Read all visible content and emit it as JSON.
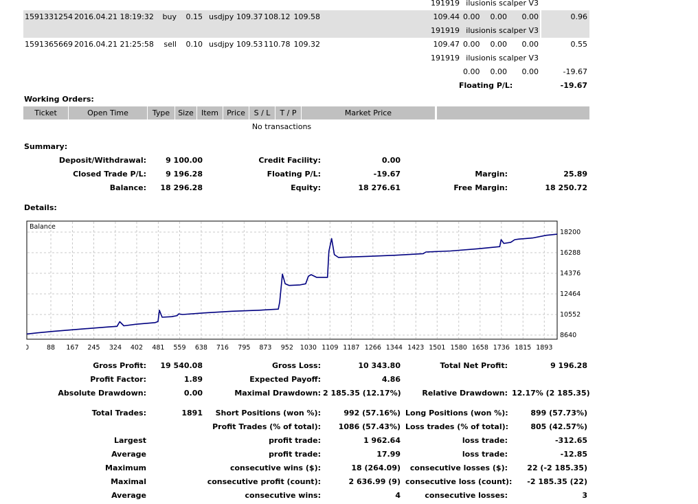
{
  "trades": [
    {
      "ticket": "",
      "time": "",
      "type": "",
      "size": "",
      "item": "",
      "price": "",
      "sl": "",
      "tp": "",
      "close": "191919",
      "comm": "",
      "tax": "",
      "swap": "",
      "comment": "ilusionis scalper V3",
      "profit": "",
      "grey": false
    },
    {
      "ticket": "1591331254",
      "time": "2016.04.21 18:19:32",
      "type": "buy",
      "size": "0.15",
      "item": "usdjpy",
      "price": "109.37",
      "sl": "108.12",
      "tp": "109.58",
      "close": "109.44",
      "comm": "0.00",
      "tax": "0.00",
      "swap": "0.00",
      "comment": "",
      "profit": "0.96",
      "grey": true
    },
    {
      "ticket": "",
      "time": "",
      "type": "",
      "size": "",
      "item": "",
      "price": "",
      "sl": "",
      "tp": "",
      "close": "191919",
      "comm": "",
      "tax": "",
      "swap": "",
      "comment": "ilusionis scalper V3",
      "profit": "",
      "grey": true
    },
    {
      "ticket": "1591365669",
      "time": "2016.04.21 21:25:58",
      "type": "sell",
      "size": "0.10",
      "item": "usdjpy",
      "price": "109.53",
      "sl": "110.78",
      "tp": "109.32",
      "close": "109.47",
      "comm": "0.00",
      "tax": "0.00",
      "swap": "0.00",
      "comment": "",
      "profit": "0.55",
      "grey": false
    },
    {
      "ticket": "",
      "time": "",
      "type": "",
      "size": "",
      "item": "",
      "price": "",
      "sl": "",
      "tp": "",
      "close": "191919",
      "comm": "",
      "tax": "",
      "swap": "",
      "comment": "ilusionis scalper V3",
      "profit": "",
      "grey": false
    },
    {
      "ticket": "",
      "time": "",
      "type": "",
      "size": "",
      "item": "",
      "price": "",
      "sl": "",
      "tp": "",
      "close": "",
      "comm": "0.00",
      "tax": "0.00",
      "swap": "0.00",
      "comment": "",
      "profit": "-19.67",
      "grey": false
    }
  ],
  "floating": {
    "label": "Floating P/L:",
    "value": "-19.67"
  },
  "working": {
    "title": "Working Orders:",
    "headers": [
      "Ticket",
      "Open Time",
      "Type",
      "Size",
      "Item",
      "Price",
      "S / L",
      "T / P",
      "Market Price"
    ],
    "empty": "No transactions"
  },
  "summary": {
    "title": "Summary:",
    "deposit_label": "Deposit/Withdrawal:",
    "deposit": "9 100.00",
    "credit_label": "Credit Facility:",
    "credit": "0.00",
    "closed_label": "Closed Trade P/L:",
    "closed": "9 196.28",
    "floating_label": "Floating P/L:",
    "floating": "-19.67",
    "margin_label": "Margin:",
    "margin": "25.89",
    "balance_label": "Balance:",
    "balance": "18 296.28",
    "equity_label": "Equity:",
    "equity": "18 276.61",
    "free_label": "Free Margin:",
    "free": "18 250.72"
  },
  "details": {
    "title": "Details:"
  },
  "chart_data": {
    "type": "line",
    "title": "Balance",
    "x_ticks": [
      "0",
      "88",
      "167",
      "245",
      "324",
      "402",
      "481",
      "559",
      "638",
      "716",
      "795",
      "873",
      "952",
      "1030",
      "1109",
      "1187",
      "1266",
      "1344",
      "1423",
      "1501",
      "1580",
      "1658",
      "1736",
      "1815",
      "1893"
    ],
    "y_ticks": [
      "18200",
      "16288",
      "14376",
      "12464",
      "10552",
      "8640"
    ],
    "xlim": [
      0,
      1940
    ],
    "ylim": [
      8640,
      18200
    ],
    "grid": true,
    "line_color": "#000080",
    "series": [
      {
        "points": [
          [
            0,
            8740
          ],
          [
            40,
            8850
          ],
          [
            100,
            9000
          ],
          [
            200,
            9200
          ],
          [
            300,
            9400
          ],
          [
            330,
            9450
          ],
          [
            340,
            9880
          ],
          [
            355,
            9500
          ],
          [
            400,
            9650
          ],
          [
            470,
            9800
          ],
          [
            480,
            9900
          ],
          [
            485,
            10950
          ],
          [
            495,
            10300
          ],
          [
            530,
            10350
          ],
          [
            550,
            10450
          ],
          [
            555,
            10600
          ],
          [
            570,
            10550
          ],
          [
            650,
            10700
          ],
          [
            750,
            10850
          ],
          [
            850,
            10950
          ],
          [
            920,
            11050
          ],
          [
            925,
            11700
          ],
          [
            935,
            14300
          ],
          [
            945,
            13400
          ],
          [
            960,
            13250
          ],
          [
            1000,
            13300
          ],
          [
            1020,
            13400
          ],
          [
            1030,
            14100
          ],
          [
            1040,
            14250
          ],
          [
            1060,
            14000
          ],
          [
            1100,
            14000
          ],
          [
            1105,
            16400
          ],
          [
            1115,
            17600
          ],
          [
            1125,
            16100
          ],
          [
            1140,
            15850
          ],
          [
            1250,
            15950
          ],
          [
            1350,
            16050
          ],
          [
            1450,
            16200
          ],
          [
            1460,
            16350
          ],
          [
            1550,
            16450
          ],
          [
            1650,
            16650
          ],
          [
            1730,
            16850
          ],
          [
            1735,
            17500
          ],
          [
            1745,
            17150
          ],
          [
            1770,
            17250
          ],
          [
            1785,
            17500
          ],
          [
            1800,
            17550
          ],
          [
            1850,
            17650
          ],
          [
            1900,
            17900
          ],
          [
            1940,
            18000
          ]
        ]
      }
    ]
  },
  "stats": {
    "gross_profit_label": "Gross Profit:",
    "gross_profit": "19 540.08",
    "gross_loss_label": "Gross Loss:",
    "gross_loss": "10 343.80",
    "net_label": "Total Net Profit:",
    "net": "9 196.28",
    "pf_label": "Profit Factor:",
    "pf": "1.89",
    "ep_label": "Expected Payoff:",
    "ep": "4.86",
    "abs_dd_label": "Absolute Drawdown:",
    "abs_dd": "0.00",
    "max_dd_label": "Maximal Drawdown:",
    "max_dd": "2 185.35 (12.17%)",
    "rel_dd_label": "Relative Drawdown:",
    "rel_dd": "12.17% (2 185.35)",
    "total_label": "Total Trades:",
    "total": "1891",
    "short_label": "Short Positions (won %):",
    "short": "992 (57.16%)",
    "long_label": "Long Positions (won %):",
    "long": "899 (57.73%)",
    "ptrades_label": "Profit Trades (% of total):",
    "ptrades": "1086 (57.43%)",
    "ltrades_label": "Loss trades (% of total):",
    "ltrades": "805 (42.57%)",
    "largest_label": "Largest",
    "lp_label": "profit trade:",
    "lp": "1 962.64",
    "ll_label": "loss trade:",
    "ll": "-312.65",
    "average_label": "Average",
    "ap_label": "profit trade:",
    "ap": "17.99",
    "al_label": "loss trade:",
    "al": "-12.85",
    "maximum_label": "Maximum",
    "mcw_label": "consecutive wins ($):",
    "mcw": "18 (264.09)",
    "mcl_label": "consecutive losses ($):",
    "mcl": "22 (-2 185.35)",
    "maximal_label": "Maximal",
    "mcp_label": "consecutive profit (count):",
    "mcp": "2 636.99 (9)",
    "mclc_label": "consecutive loss (count):",
    "mclc": "-2 185.35 (22)",
    "average2_label": "Average",
    "acw_label": "consecutive wins:",
    "acw": "4",
    "acl_label": "consecutive losses:",
    "acl": "3"
  }
}
